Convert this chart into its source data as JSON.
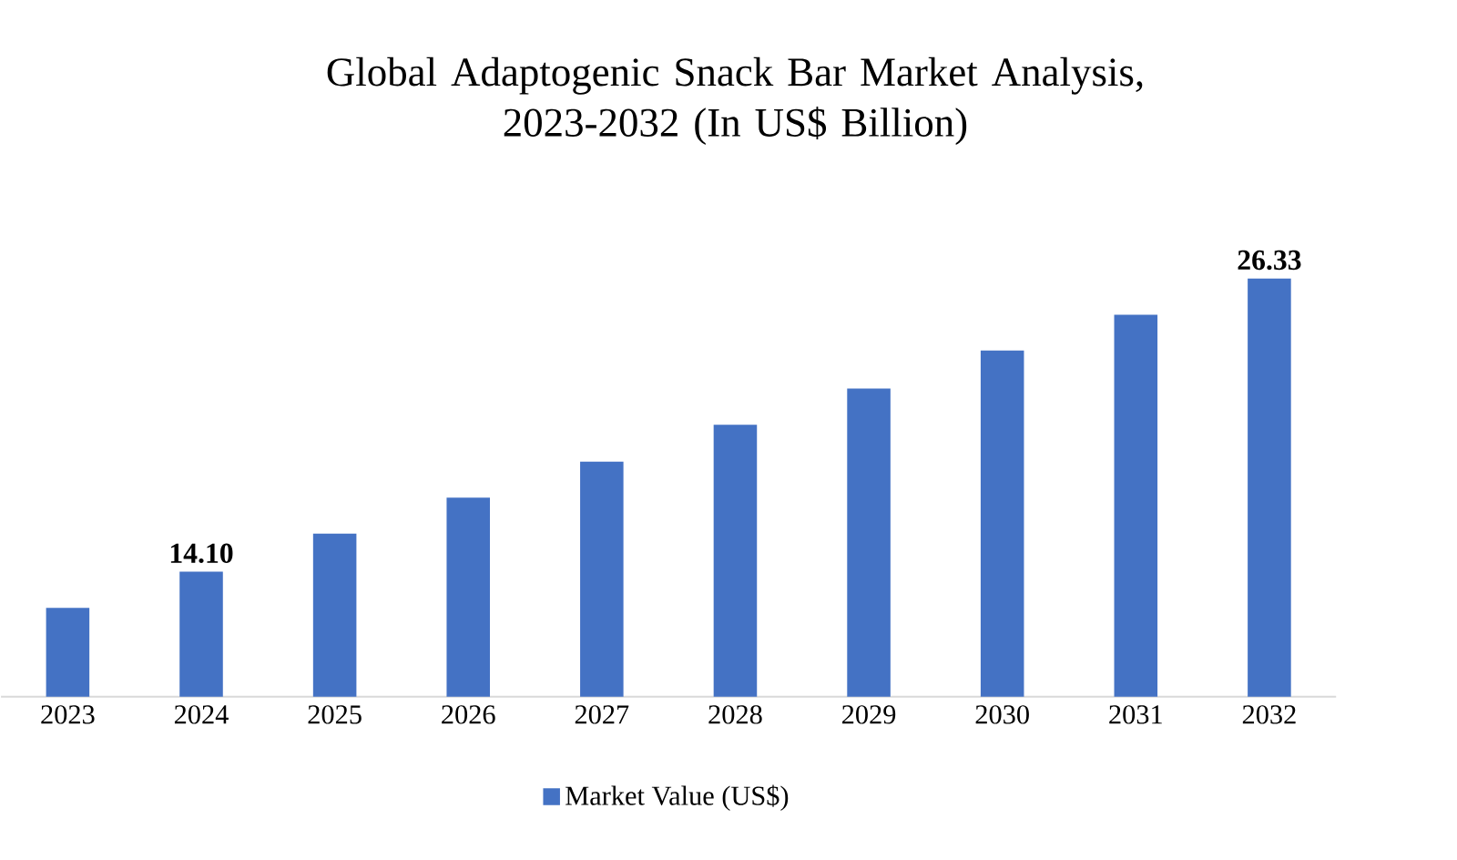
{
  "chart_data": {
    "type": "bar",
    "title": "Global Adaptogenic Snack Bar Market Analysis,\n2023-2032 (In US$ Billion)",
    "categories": [
      "2023",
      "2024",
      "2025",
      "2026",
      "2027",
      "2028",
      "2029",
      "2030",
      "2031",
      "2032"
    ],
    "series": [
      {
        "name": "Market Value (US$)",
        "color": "#4472c4",
        "values": [
          12.59,
          14.1,
          15.68,
          17.19,
          18.69,
          20.23,
          21.74,
          23.32,
          24.82,
          26.33
        ],
        "value_labels": [
          null,
          "14.10",
          null,
          null,
          null,
          null,
          null,
          null,
          null,
          "26.33"
        ]
      }
    ],
    "ylim": [
      8.88,
      26.33
    ],
    "tick_labels": "x",
    "legend": "bottom"
  }
}
